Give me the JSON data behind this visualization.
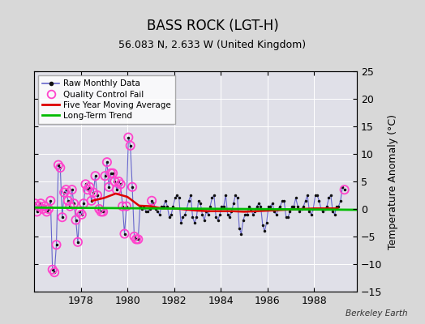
{
  "title": "BASS ROCK (LGT-H)",
  "subtitle": "56.083 N, 2.633 W (United Kingdom)",
  "ylabel": "Temperature Anomaly (°C)",
  "watermark": "Berkeley Earth",
  "ylim": [
    -15,
    25
  ],
  "yticks": [
    -15,
    -10,
    -5,
    0,
    5,
    10,
    15,
    20,
    25
  ],
  "xlim": [
    1976.0,
    1989.83
  ],
  "xticks": [
    1978,
    1980,
    1982,
    1984,
    1986,
    1988
  ],
  "bg_color": "#d8d8d8",
  "plot_bg_color": "#e0e0e8",
  "grid_color": "#ffffff",
  "raw_line_color": "#6666cc",
  "raw_marker_color": "#111111",
  "qc_fail_color": "#ff44cc",
  "moving_avg_color": "#dd0000",
  "trend_color": "#00bb00",
  "raw_monthly_x": [
    1976.042,
    1976.125,
    1976.208,
    1976.292,
    1976.375,
    1976.458,
    1976.542,
    1976.625,
    1976.708,
    1976.792,
    1976.875,
    1976.958,
    1977.042,
    1977.125,
    1977.208,
    1977.292,
    1977.375,
    1977.458,
    1977.542,
    1977.625,
    1977.708,
    1977.792,
    1977.875,
    1977.958,
    1978.042,
    1978.125,
    1978.208,
    1978.292,
    1978.375,
    1978.458,
    1978.542,
    1978.625,
    1978.708,
    1978.792,
    1978.875,
    1978.958,
    1979.042,
    1979.125,
    1979.208,
    1979.292,
    1979.375,
    1979.458,
    1979.542,
    1979.625,
    1979.708,
    1979.792,
    1979.875,
    1979.958,
    1980.042,
    1980.125,
    1980.208,
    1980.292,
    1980.375,
    1980.458,
    1980.542,
    1980.625,
    1980.708,
    1980.792,
    1980.875,
    1980.958,
    1981.042,
    1981.125,
    1981.208,
    1981.292,
    1981.375,
    1981.458,
    1981.542,
    1981.625,
    1981.708,
    1981.792,
    1981.875,
    1981.958,
    1982.042,
    1982.125,
    1982.208,
    1982.292,
    1982.375,
    1982.458,
    1982.542,
    1982.625,
    1982.708,
    1982.792,
    1982.875,
    1982.958,
    1983.042,
    1983.125,
    1983.208,
    1983.292,
    1983.375,
    1983.458,
    1983.542,
    1983.625,
    1983.708,
    1983.792,
    1983.875,
    1983.958,
    1984.042,
    1984.125,
    1984.208,
    1984.292,
    1984.375,
    1984.458,
    1984.542,
    1984.625,
    1984.708,
    1984.792,
    1984.875,
    1984.958,
    1985.042,
    1985.125,
    1985.208,
    1985.292,
    1985.375,
    1985.458,
    1985.542,
    1985.625,
    1985.708,
    1985.792,
    1985.875,
    1985.958,
    1986.042,
    1986.125,
    1986.208,
    1986.292,
    1986.375,
    1986.458,
    1986.542,
    1986.625,
    1986.708,
    1986.792,
    1986.875,
    1986.958,
    1987.042,
    1987.125,
    1987.208,
    1987.292,
    1987.375,
    1987.458,
    1987.542,
    1987.625,
    1987.708,
    1987.792,
    1987.875,
    1987.958,
    1988.042,
    1988.125,
    1988.208,
    1988.292,
    1988.375,
    1988.458,
    1988.542,
    1988.625,
    1988.708,
    1988.792,
    1988.875,
    1988.958,
    1989.042,
    1989.125,
    1989.208,
    1989.292
  ],
  "raw_monthly_y": [
    1.0,
    -0.5,
    0.5,
    1.0,
    0.0,
    0.5,
    -0.5,
    0.0,
    1.5,
    -11.0,
    -11.5,
    -6.5,
    8.0,
    7.5,
    -1.5,
    3.0,
    3.5,
    1.5,
    0.5,
    3.5,
    1.0,
    -2.0,
    -6.0,
    -0.5,
    -1.0,
    1.0,
    4.5,
    3.5,
    4.0,
    1.5,
    3.0,
    6.0,
    2.5,
    0.0,
    -0.5,
    -0.5,
    6.0,
    8.5,
    4.0,
    6.5,
    6.5,
    5.0,
    3.5,
    5.0,
    4.5,
    0.5,
    -4.5,
    0.5,
    13.0,
    11.5,
    4.0,
    -5.0,
    -5.5,
    -5.5,
    0.5,
    0.0,
    0.5,
    -0.5,
    -0.5,
    0.0,
    1.5,
    1.0,
    0.0,
    -0.5,
    -1.0,
    0.5,
    0.5,
    1.5,
    0.5,
    -1.5,
    -1.0,
    0.5,
    2.0,
    2.5,
    2.0,
    -2.5,
    -1.5,
    -1.0,
    0.0,
    1.5,
    2.5,
    -1.5,
    -2.5,
    -1.5,
    1.5,
    1.0,
    -1.0,
    -2.0,
    -0.5,
    -1.0,
    0.5,
    2.0,
    2.5,
    -1.5,
    -2.0,
    -1.0,
    0.5,
    0.5,
    2.5,
    -1.0,
    -1.5,
    -0.5,
    1.0,
    2.5,
    2.0,
    -3.5,
    -4.5,
    -2.0,
    -1.0,
    -1.0,
    0.5,
    0.0,
    -1.0,
    -0.5,
    0.5,
    1.0,
    0.5,
    -3.0,
    -4.0,
    -2.5,
    0.5,
    0.5,
    1.0,
    -0.5,
    -1.0,
    0.0,
    0.5,
    1.5,
    1.5,
    -1.5,
    -1.5,
    -0.5,
    0.5,
    0.5,
    2.0,
    0.5,
    -0.5,
    0.0,
    0.5,
    1.5,
    2.5,
    -0.5,
    -1.0,
    0.0,
    2.5,
    2.5,
    1.5,
    0.0,
    -0.5,
    0.0,
    0.5,
    2.0,
    2.5,
    -0.5,
    -1.0,
    0.5,
    0.5,
    1.5,
    4.0,
    3.5
  ],
  "qc_fail_x": [
    1976.042,
    1976.125,
    1976.208,
    1976.292,
    1976.375,
    1976.458,
    1976.542,
    1976.625,
    1976.708,
    1976.792,
    1976.875,
    1976.958,
    1977.042,
    1977.125,
    1977.208,
    1977.292,
    1977.375,
    1977.458,
    1977.542,
    1977.625,
    1977.708,
    1977.792,
    1977.875,
    1977.958,
    1978.042,
    1978.125,
    1978.208,
    1978.292,
    1978.375,
    1978.458,
    1978.542,
    1978.625,
    1978.708,
    1978.792,
    1978.875,
    1978.958,
    1979.042,
    1979.125,
    1979.208,
    1979.292,
    1979.375,
    1979.458,
    1979.542,
    1979.625,
    1979.708,
    1979.792,
    1979.875,
    1979.958,
    1980.042,
    1980.125,
    1980.208,
    1980.292,
    1980.375,
    1980.458,
    1981.042,
    1989.292
  ],
  "qc_fail_y": [
    1.0,
    -0.5,
    0.5,
    1.0,
    0.0,
    0.5,
    -0.5,
    0.0,
    1.5,
    -11.0,
    -11.5,
    -6.5,
    8.0,
    7.5,
    -1.5,
    3.0,
    3.5,
    1.5,
    0.5,
    3.5,
    1.0,
    -2.0,
    -6.0,
    -0.5,
    -1.0,
    1.0,
    4.5,
    3.5,
    4.0,
    1.5,
    3.0,
    6.0,
    2.5,
    0.0,
    -0.5,
    -0.5,
    6.0,
    8.5,
    4.0,
    6.5,
    6.5,
    5.0,
    3.5,
    5.0,
    4.5,
    0.5,
    -4.5,
    0.5,
    13.0,
    11.5,
    4.0,
    -5.0,
    -5.5,
    -5.5,
    1.5,
    3.5
  ],
  "moving_avg_x": [
    1978.5,
    1979.0,
    1979.5,
    1980.0,
    1980.5,
    1981.0,
    1981.5,
    1982.0,
    1982.5,
    1983.0,
    1983.5,
    1984.0,
    1984.5,
    1985.0,
    1985.5,
    1986.0,
    1986.5,
    1987.0,
    1987.5,
    1988.0,
    1988.5,
    1989.0
  ],
  "moving_avg_y": [
    1.5,
    2.0,
    2.8,
    2.2,
    0.6,
    0.5,
    0.1,
    0.1,
    -0.1,
    -0.3,
    -0.4,
    -0.4,
    -0.4,
    -0.5,
    -0.4,
    -0.3,
    -0.2,
    -0.1,
    0.0,
    0.1,
    0.1,
    0.1
  ],
  "trend_x": [
    1976.0,
    1989.83
  ],
  "trend_y": [
    0.25,
    -0.15
  ]
}
